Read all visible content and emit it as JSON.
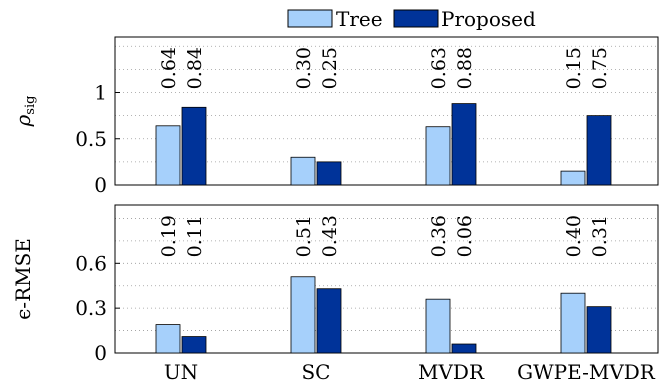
{
  "legend": [
    {
      "label": "Tree",
      "color": "#a6d0fb"
    },
    {
      "label": "Proposed",
      "color": "#003399"
    }
  ],
  "chart_data": [
    {
      "type": "bar",
      "ylabel": "ρsig",
      "ylabel_main": "ρ",
      "ylabel_sub": "sig",
      "categories": [
        "UN",
        "SC",
        "MVDR",
        "GWPE-MVDR"
      ],
      "ylim": [
        0,
        1.6
      ],
      "yticks": [
        "0",
        "0.5",
        "1"
      ],
      "ytick_values": [
        0,
        0.5,
        1
      ],
      "grid": "horizontal dotted",
      "series": [
        {
          "name": "Tree",
          "values": [
            0.64,
            0.3,
            0.63,
            0.15
          ],
          "labels": [
            "0.64",
            "0.30",
            "0.63",
            "0.15"
          ]
        },
        {
          "name": "Proposed",
          "values": [
            0.84,
            0.25,
            0.88,
            0.75
          ],
          "labels": [
            "0.84",
            "0.25",
            "0.88",
            "0.75"
          ]
        }
      ]
    },
    {
      "type": "bar",
      "ylabel": "ϵ-RMSE",
      "categories": [
        "UN",
        "SC",
        "MVDR",
        "GWPE-MVDR"
      ],
      "ylim": [
        0,
        0.99
      ],
      "yticks": [
        "0",
        "0.3",
        "0.6"
      ],
      "ytick_values": [
        0,
        0.3,
        0.6
      ],
      "grid": "horizontal dotted",
      "series": [
        {
          "name": "Tree",
          "values": [
            0.19,
            0.51,
            0.36,
            0.4
          ],
          "labels": [
            "0.19",
            "0.51",
            "0.36",
            "0.40"
          ]
        },
        {
          "name": "Proposed",
          "values": [
            0.11,
            0.43,
            0.06,
            0.31
          ],
          "labels": [
            "0.11",
            "0.43",
            "0.06",
            "0.31"
          ]
        }
      ]
    }
  ]
}
